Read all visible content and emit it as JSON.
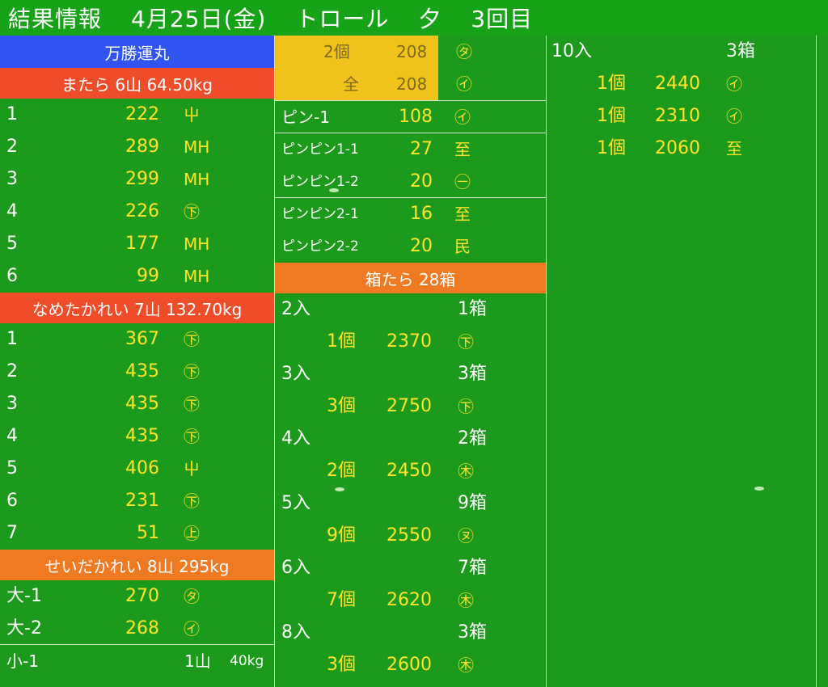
{
  "header": {
    "title": "結果情報",
    "date": "4月25日(金)",
    "method": "トロール",
    "session": "夕",
    "round": "3回目"
  },
  "vessel": "万勝運丸",
  "col1": {
    "sections": [
      {
        "title": "またら 6山 64.50kg",
        "rows": [
          {
            "label": "1",
            "value": "222",
            "mark": "⼬"
          },
          {
            "label": "2",
            "value": "289",
            "mark": "MH"
          },
          {
            "label": "3",
            "value": "299",
            "mark": "MH"
          },
          {
            "label": "4",
            "value": "226",
            "mark": "㊦"
          },
          {
            "label": "5",
            "value": "177",
            "mark": "MH"
          },
          {
            "label": "6",
            "value": "99",
            "mark": "MH"
          }
        ]
      },
      {
        "title": "なめたかれい 7山 132.70kg",
        "rows": [
          {
            "label": "1",
            "value": "367",
            "mark": "㊦"
          },
          {
            "label": "2",
            "value": "435",
            "mark": "㊦"
          },
          {
            "label": "3",
            "value": "435",
            "mark": "㊦"
          },
          {
            "label": "4",
            "value": "435",
            "mark": "㊦"
          },
          {
            "label": "5",
            "value": "406",
            "mark": "⼬"
          },
          {
            "label": "6",
            "value": "231",
            "mark": "㊦"
          },
          {
            "label": "7",
            "value": "51",
            "mark": "㊤"
          }
        ]
      },
      {
        "title": "せいだかれい 8山 295kg",
        "rows": [
          {
            "label": "大-1",
            "value": "270",
            "mark": "㋟"
          },
          {
            "label": "大-2",
            "value": "268",
            "mark": "㋑"
          }
        ]
      }
    ],
    "summary": {
      "label": "小-1",
      "count": "1山",
      "weight": "40kg"
    }
  },
  "col2": {
    "top": [
      {
        "label": "2個",
        "value": "208",
        "mark": "㋟"
      },
      {
        "label": "全",
        "value": "208",
        "mark": "㋑"
      }
    ],
    "pin": {
      "label": "ピン-1",
      "value": "108",
      "mark": "㋑"
    },
    "pinpin1": [
      {
        "label": "ピンピン1-1",
        "value": "27",
        "mark": "⾄"
      },
      {
        "label": "ピンピン1-2",
        "value": "20",
        "mark": "㊀"
      }
    ],
    "pinpin2": [
      {
        "label": "ピンピン2-1",
        "value": "16",
        "mark": "⾄"
      },
      {
        "label": "ピンピン2-2",
        "value": "20",
        "mark": "⺠"
      }
    ],
    "boxes_title": "箱たら 28箱",
    "boxes": [
      {
        "irisu": "2入",
        "hako": "1箱",
        "count": "1個",
        "price": "2370",
        "mark": "㊦"
      },
      {
        "irisu": "3入",
        "hako": "3箱",
        "count": "3個",
        "price": "2750",
        "mark": "㊦"
      },
      {
        "irisu": "4入",
        "hako": "2箱",
        "count": "2個",
        "price": "2450",
        "mark": "㊍"
      },
      {
        "irisu": "5入",
        "hako": "9箱",
        "count": "9個",
        "price": "2550",
        "mark": "㋦"
      },
      {
        "irisu": "6入",
        "hako": "7箱",
        "count": "7個",
        "price": "2620",
        "mark": "㊍"
      },
      {
        "irisu": "8入",
        "hako": "3箱",
        "count": "3個",
        "price": "2600",
        "mark": "㊍"
      }
    ]
  },
  "col3": {
    "boxes": [
      {
        "irisu": "10入",
        "hako": "3箱"
      }
    ],
    "details": [
      {
        "count": "1個",
        "price": "2440",
        "mark": "㋑"
      },
      {
        "count": "1個",
        "price": "2310",
        "mark": "㋑"
      },
      {
        "count": "1個",
        "price": "2060",
        "mark": "⾄"
      }
    ]
  },
  "colors": {
    "background": "#1c9a1c",
    "header": "#17a317",
    "vessel_band": "#3154f0",
    "section_red": "#ef4c2a",
    "section_orange": "#ef7a22",
    "gold_block": "#f2c21c",
    "value_text": "#ffe32a"
  }
}
